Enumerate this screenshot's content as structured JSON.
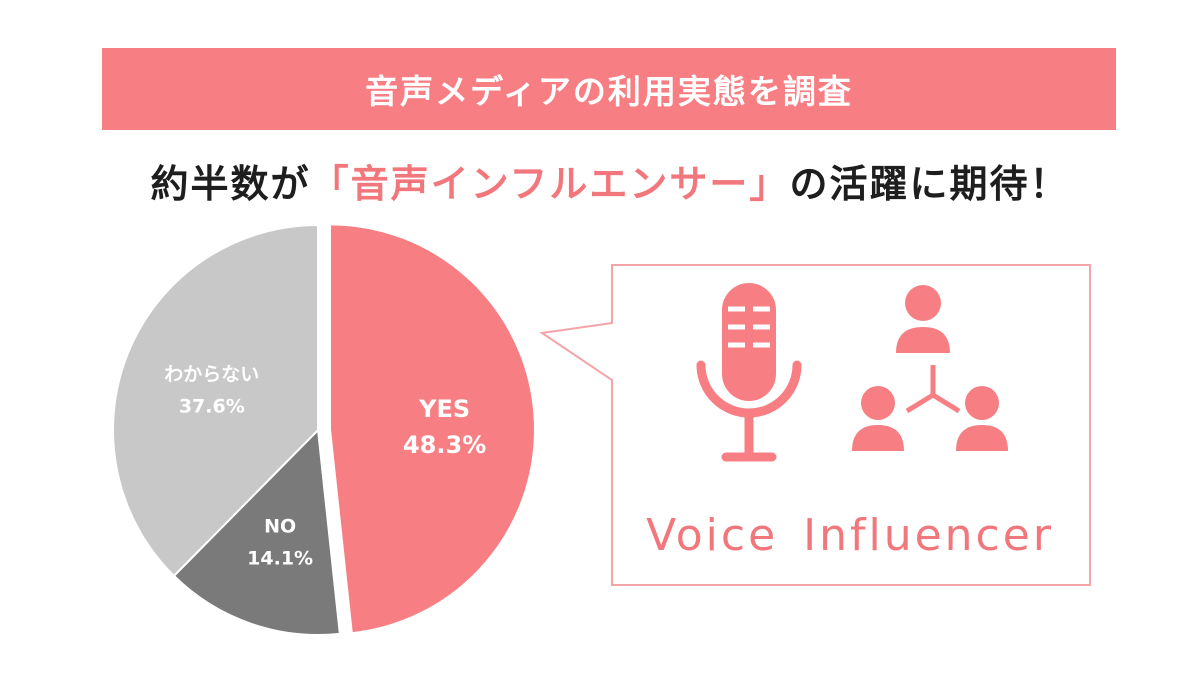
{
  "banner": {
    "title": "音声メディアの利用実態を調査"
  },
  "headline": {
    "prefix": "約半数が",
    "accent": "「音声インフルエンサー」",
    "suffix": "の活躍に期待！"
  },
  "callout": {
    "label": "Voice Influencer"
  },
  "colors": {
    "accent": "#f77f84",
    "yes": "#f77f84",
    "no": "#7a7a7a",
    "unknown": "#c8c8c8"
  },
  "chart_data": {
    "type": "pie",
    "title": "",
    "slices": [
      {
        "label": "YES",
        "value": 48.3,
        "display": "48.3%",
        "color": "#f77f84",
        "exploded": true
      },
      {
        "label": "NO",
        "value": 14.1,
        "display": "14.1%",
        "color": "#7a7a7a",
        "exploded": false
      },
      {
        "label": "わからない",
        "value": 37.6,
        "display": "37.6%",
        "color": "#c8c8c8",
        "exploded": false
      }
    ],
    "start_angle": "12 o'clock",
    "direction": "clockwise"
  }
}
